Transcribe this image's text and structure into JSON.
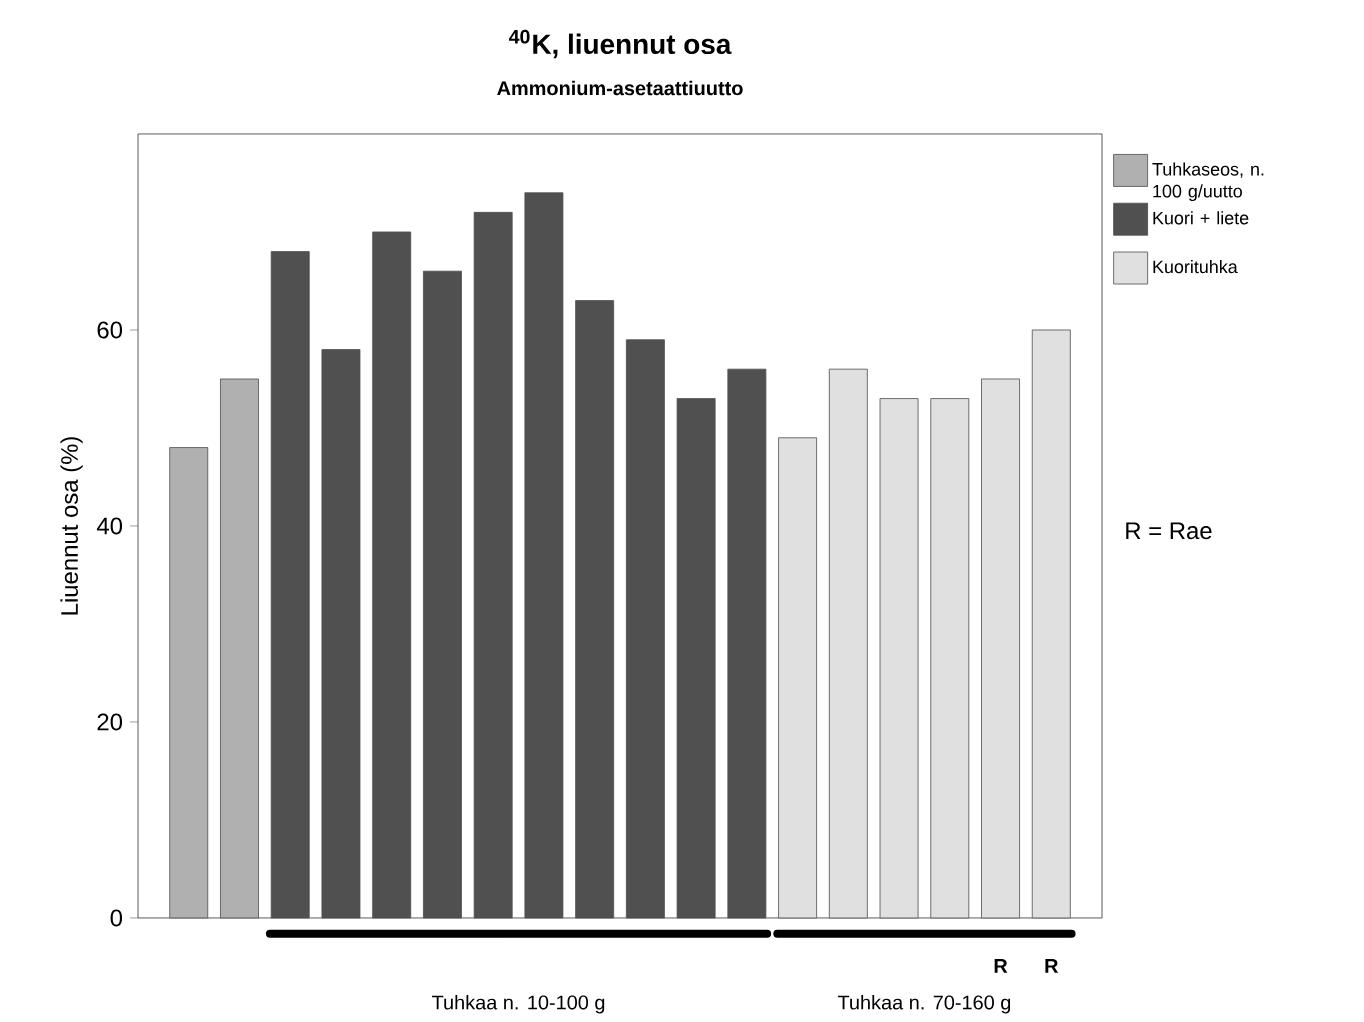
{
  "chart_data": {
    "type": "bar",
    "title": "$^{40}$K, liuennut osa",
    "subtitle": "Ammonium-asetaattiuutto",
    "ylabel": "Liuennut osa (%)",
    "categories": [
      null,
      null,
      null,
      null,
      null,
      null,
      null,
      null,
      null,
      null,
      null,
      null,
      null,
      null,
      null,
      null,
      null,
      null
    ],
    "series": [
      {
        "name": "Tuhkaseos, n. 100 g/uutto",
        "color": "#b0b0b0",
        "values": [
          48,
          55,
          null,
          null,
          null,
          null,
          null,
          null,
          null,
          null,
          null,
          null,
          null,
          null,
          null,
          null,
          null,
          null
        ]
      },
      {
        "name": "Kuori + liete",
        "color": "#505050",
        "values": [
          null,
          null,
          68,
          58,
          70,
          66,
          72,
          74,
          63,
          59,
          53,
          56,
          null,
          null,
          null,
          null,
          null,
          null
        ]
      },
      {
        "name": "Kuorituhka",
        "color": "#e0e0e0",
        "values": [
          null,
          null,
          null,
          null,
          null,
          null,
          null,
          null,
          null,
          null,
          null,
          null,
          49,
          56,
          53,
          53,
          55,
          60
        ]
      }
    ],
    "stacked": true,
    "ylim": [
      0,
      80
    ],
    "yticks": [
      0,
      20,
      40,
      60
    ],
    "grid": false,
    "legend": "right",
    "tick_labels": "y",
    "annotations": [
      "Tuhkaa n. 10-100 g",
      "Tuhkaa n. 70-160 g",
      "R",
      "R",
      "R = Rae"
    ]
  }
}
